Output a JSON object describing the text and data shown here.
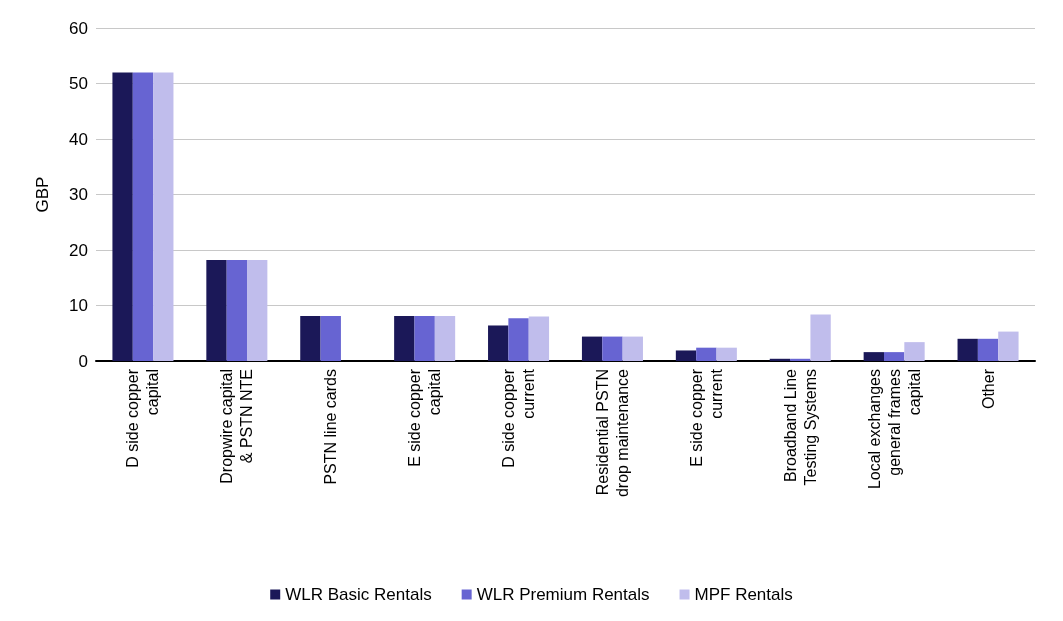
{
  "chart_data": {
    "type": "bar",
    "ylabel": "GBP",
    "categories": [
      "D side copper\ncapital",
      "Dropwire capital\n& PSTN NTE",
      "PSTN line cards",
      "E side copper\ncapital",
      "D side copper\ncurrent",
      "Residential PSTN\ndrop maintenance",
      "E side copper\ncurrent",
      "Broadband Line\nTesting Systems",
      "Local exchanges\ngeneral frames\ncapital",
      "Other"
    ],
    "series": [
      {
        "name": "WLR Basic Rentals",
        "color": "#1b1858",
        "values": [
          52,
          18.2,
          8.1,
          8.1,
          6.4,
          4.4,
          1.9,
          0.4,
          1.6,
          4.0
        ]
      },
      {
        "name": "WLR Premium Rentals",
        "color": "#6764d2",
        "values": [
          52,
          18.2,
          8.1,
          8.1,
          7.7,
          4.4,
          2.4,
          0.4,
          1.6,
          4.0
        ]
      },
      {
        "name": "MPF Rentals",
        "color": "#c0bdec",
        "values": [
          52,
          18.2,
          null,
          8.1,
          8.0,
          4.4,
          2.4,
          8.4,
          3.4,
          5.3
        ]
      }
    ],
    "ylim": [
      0,
      60
    ],
    "yticks": [
      0,
      10,
      20,
      30,
      40,
      50,
      60
    ],
    "grid": "y",
    "legend": "bottom"
  }
}
